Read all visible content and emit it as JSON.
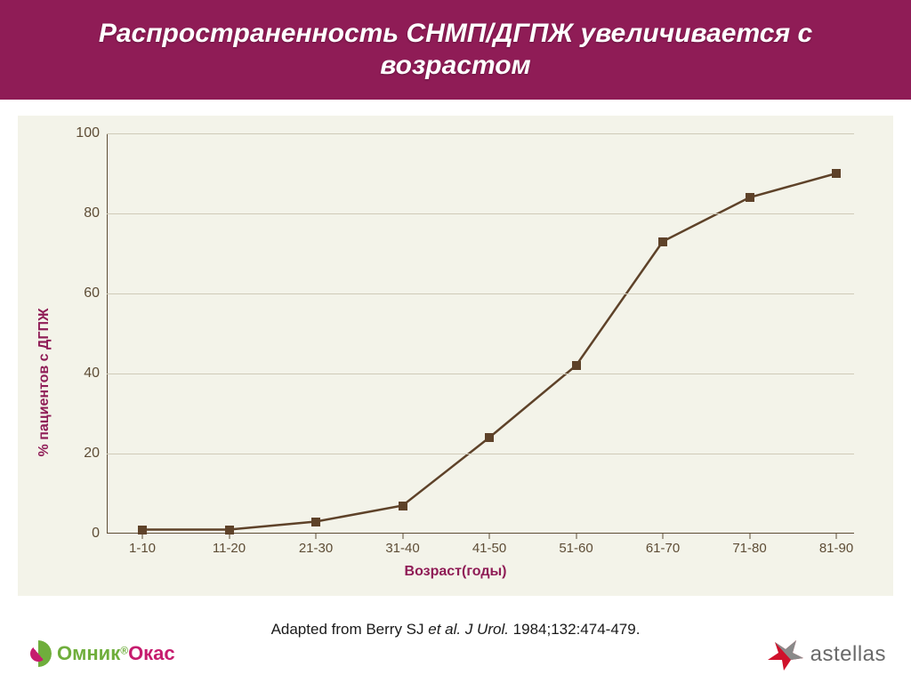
{
  "title": "Распространенность СНМП/ДГПЖ увеличивается с возрастом",
  "title_style": {
    "bg": "#8f1c56",
    "color": "#ffffff",
    "fontsize": 30
  },
  "chart": {
    "type": "line",
    "panel_bg": "#f3f3e9",
    "accent_color": "#8f1c56",
    "axis_color": "#5e4d36",
    "axis_text_color": "#5e4d36",
    "grid_color": "#cfcab8",
    "line_color": "#5e4229",
    "line_width": 2.5,
    "marker_style": "square",
    "marker_size": 10,
    "yaxis_label": "% пациентов с ДГПЖ",
    "xaxis_label": "Возраст(годы)",
    "label_fontsize": 16,
    "tick_fontsize": 16,
    "ylim": [
      0,
      100
    ],
    "ytick_step": 20,
    "yticks": [
      0,
      20,
      40,
      60,
      80,
      100
    ],
    "categories": [
      "1-10",
      "11-20",
      "21-30",
      "31-40",
      "41-50",
      "51-60",
      "61-70",
      "71-80",
      "81-90"
    ],
    "values": [
      1,
      1,
      3,
      7,
      24,
      42,
      73,
      84,
      90
    ],
    "grid": true
  },
  "citation": {
    "prefix": "Adapted from Berry SJ ",
    "italic": "et al. J Urol.",
    "suffix": " 1984;132:474-479.",
    "fontsize": 17
  },
  "logo_left": {
    "part1": "Омник",
    "reg": "®",
    "part2": "Окас"
  },
  "logo_right": {
    "text": "astellas",
    "star_color_a": "#d0112b",
    "star_color_b": "#8a8a8a"
  }
}
